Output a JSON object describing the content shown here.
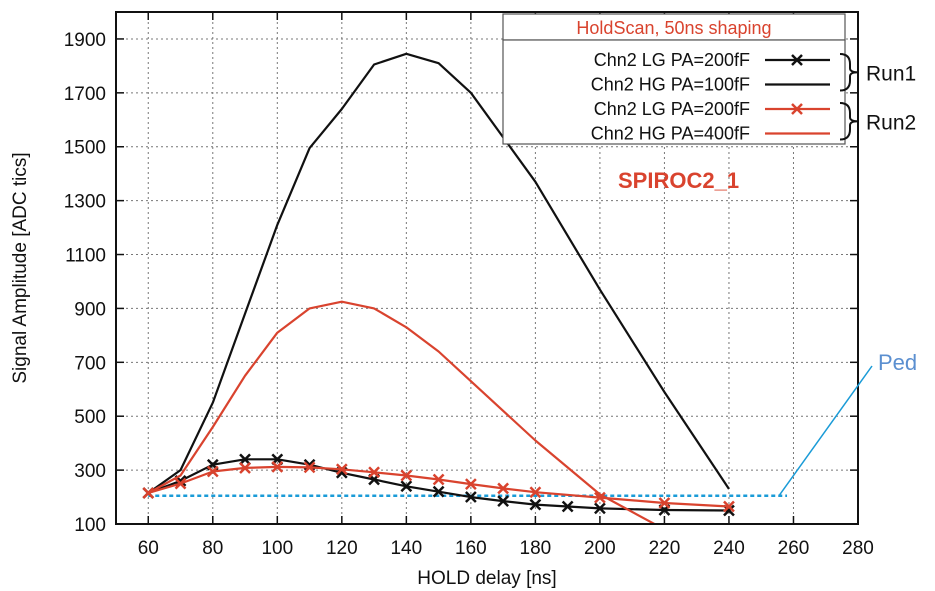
{
  "chart_data": {
    "type": "line",
    "xlabel": "HOLD delay [ns]",
    "ylabel": "Signal Amplitude [ADC tics]",
    "xlim": [
      50,
      280
    ],
    "ylim": [
      100,
      2000
    ],
    "xticks": [
      60,
      80,
      100,
      120,
      140,
      160,
      180,
      200,
      220,
      240,
      260,
      280
    ],
    "yticks": [
      100,
      300,
      500,
      700,
      900,
      1100,
      1300,
      1500,
      1700,
      1900
    ],
    "grid": true,
    "legend": {
      "title": "HoldScan, 50ns shaping",
      "placement": "top-right",
      "groups": [
        {
          "label": "Run1",
          "series": [
            0,
            1
          ]
        },
        {
          "label": "Run2",
          "series": [
            2,
            3
          ]
        }
      ]
    },
    "series": [
      {
        "name": "Chn2 LG PA=200fF",
        "color": "#111111",
        "marker": "x",
        "x": [
          60,
          70,
          80,
          90,
          100,
          110,
          120,
          130,
          140,
          150,
          160,
          170,
          180,
          190,
          200,
          220,
          240
        ],
        "y": [
          215,
          260,
          320,
          340,
          340,
          320,
          290,
          265,
          240,
          220,
          200,
          185,
          172,
          165,
          158,
          152,
          150
        ]
      },
      {
        "name": "Chn2 HG PA=100fF",
        "color": "#111111",
        "marker": "none",
        "x": [
          60,
          70,
          80,
          90,
          100,
          110,
          120,
          130,
          140,
          150,
          160,
          180,
          200,
          220,
          240
        ],
        "y": [
          215,
          300,
          550,
          880,
          1210,
          1495,
          1640,
          1805,
          1845,
          1810,
          1700,
          1370,
          970,
          590,
          230
        ]
      },
      {
        "name": "Chn2 LG PA=200fF",
        "color": "#d9432e",
        "marker": "x",
        "x": [
          60,
          70,
          80,
          90,
          100,
          110,
          120,
          130,
          140,
          150,
          160,
          170,
          180,
          200,
          220,
          240
        ],
        "y": [
          215,
          250,
          295,
          308,
          312,
          310,
          303,
          292,
          280,
          265,
          248,
          232,
          218,
          198,
          178,
          165
        ]
      },
      {
        "name": "Chn2 HG PA=400fF",
        "color": "#d9432e",
        "marker": "none",
        "x": [
          60,
          70,
          80,
          90,
          100,
          110,
          120,
          130,
          140,
          150,
          160,
          180,
          200,
          220
        ],
        "y": [
          215,
          280,
          460,
          650,
          810,
          900,
          925,
          900,
          830,
          740,
          630,
          410,
          210,
          80
        ]
      }
    ],
    "pedestal": {
      "label": "Ped",
      "y": 205,
      "x_range": [
        60,
        258
      ],
      "color": "#1a9bd7"
    },
    "annotations": {
      "chip": "SPIROC2_1"
    }
  }
}
